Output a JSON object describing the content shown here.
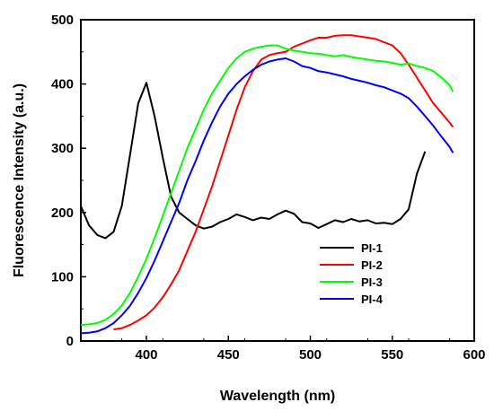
{
  "chart_data": {
    "type": "line",
    "xlabel": "Wavelength (nm)",
    "ylabel": "Fluorescence Intensity (a.u.)",
    "xlim": [
      360,
      600
    ],
    "ylim": [
      0,
      500
    ],
    "xticks": [
      400,
      450,
      500,
      550,
      600
    ],
    "yticks": [
      0,
      100,
      200,
      300,
      400,
      500
    ],
    "grid": false,
    "legend_position": "bottom-right",
    "series": [
      {
        "name": "PI-1",
        "color": "#000000",
        "x": [
          360,
          365,
          370,
          375,
          380,
          385,
          390,
          395,
          400,
          405,
          410,
          415,
          420,
          425,
          430,
          435,
          440,
          445,
          450,
          455,
          460,
          465,
          470,
          475,
          480,
          485,
          490,
          495,
          500,
          505,
          510,
          515,
          520,
          525,
          530,
          535,
          540,
          545,
          550,
          555,
          560,
          565,
          570
        ],
        "y": [
          210,
          180,
          165,
          160,
          170,
          210,
          290,
          370,
          402,
          350,
          285,
          225,
          200,
          190,
          180,
          175,
          178,
          185,
          190,
          197,
          193,
          188,
          192,
          190,
          197,
          203,
          198,
          185,
          183,
          176,
          182,
          188,
          185,
          190,
          186,
          188,
          183,
          184,
          182,
          190,
          205,
          260,
          295
        ]
      },
      {
        "name": "PI-2",
        "color": "#ff0000",
        "x": [
          380,
          385,
          390,
          395,
          400,
          405,
          410,
          415,
          420,
          425,
          430,
          435,
          440,
          445,
          450,
          455,
          460,
          465,
          470,
          475,
          480,
          485,
          490,
          495,
          500,
          505,
          510,
          515,
          520,
          525,
          530,
          535,
          540,
          545,
          550,
          555,
          560,
          565,
          570,
          575,
          580,
          585,
          587
        ],
        "y": [
          18,
          20,
          25,
          32,
          40,
          52,
          68,
          88,
          110,
          140,
          170,
          205,
          240,
          280,
          320,
          360,
          395,
          420,
          438,
          445,
          448,
          450,
          458,
          463,
          468,
          472,
          472,
          475,
          476,
          476,
          474,
          472,
          470,
          465,
          460,
          448,
          430,
          410,
          390,
          370,
          355,
          340,
          333
        ]
      },
      {
        "name": "PI-3",
        "color": "#00ff00",
        "x": [
          360,
          365,
          370,
          375,
          380,
          385,
          390,
          395,
          400,
          405,
          410,
          415,
          420,
          425,
          430,
          435,
          440,
          445,
          450,
          455,
          460,
          465,
          470,
          475,
          480,
          485,
          490,
          495,
          500,
          505,
          510,
          515,
          520,
          525,
          530,
          535,
          540,
          545,
          550,
          555,
          560,
          565,
          570,
          575,
          580,
          585,
          587
        ],
        "y": [
          25,
          26,
          28,
          33,
          42,
          55,
          75,
          100,
          128,
          160,
          195,
          230,
          265,
          300,
          330,
          360,
          385,
          405,
          425,
          440,
          450,
          455,
          458,
          460,
          460,
          455,
          452,
          450,
          448,
          447,
          445,
          443,
          445,
          442,
          440,
          438,
          436,
          435,
          433,
          430,
          432,
          428,
          425,
          420,
          410,
          398,
          388
        ]
      },
      {
        "name": "PI-4",
        "color": "#0000ff",
        "x": [
          360,
          365,
          370,
          375,
          380,
          385,
          390,
          395,
          400,
          405,
          410,
          415,
          420,
          425,
          430,
          435,
          440,
          445,
          450,
          455,
          460,
          465,
          470,
          475,
          480,
          485,
          490,
          495,
          500,
          505,
          510,
          515,
          520,
          525,
          530,
          535,
          540,
          545,
          550,
          555,
          560,
          565,
          570,
          575,
          580,
          585,
          587
        ],
        "y": [
          12,
          13,
          15,
          20,
          28,
          40,
          55,
          75,
          98,
          125,
          155,
          185,
          215,
          250,
          280,
          312,
          340,
          365,
          385,
          400,
          412,
          422,
          430,
          435,
          438,
          440,
          435,
          428,
          425,
          420,
          418,
          415,
          412,
          408,
          405,
          402,
          398,
          395,
          390,
          385,
          378,
          365,
          350,
          335,
          318,
          302,
          293
        ]
      }
    ]
  }
}
